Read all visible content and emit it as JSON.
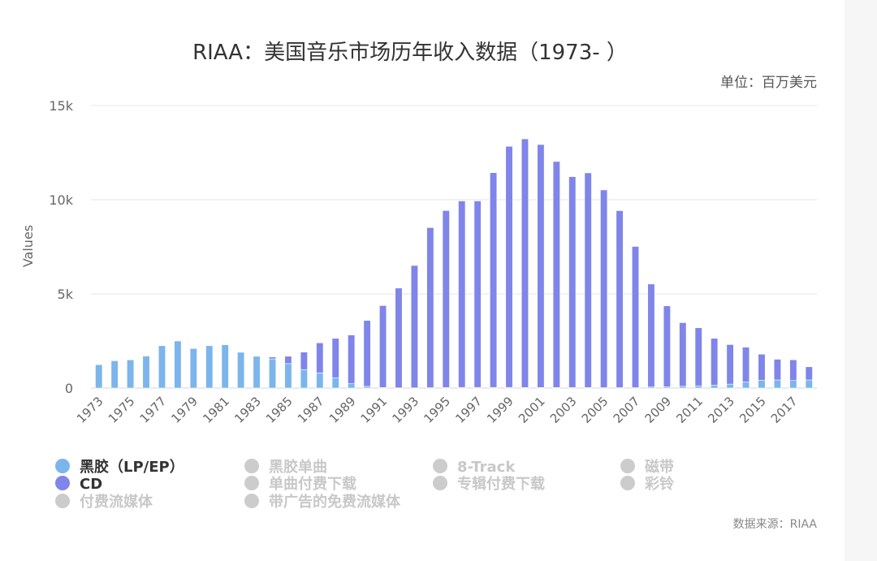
{
  "chart_data": {
    "type": "bar",
    "stacked": true,
    "title": "RIAA：美国音乐市场历年收入数据（1973- ）",
    "subtitle": "单位：百万美元",
    "ylabel": "Values",
    "ylim": [
      0,
      15000
    ],
    "yticks": [
      0,
      5000,
      10000,
      15000
    ],
    "ytick_labels": [
      "0",
      "5k",
      "10k",
      "15k"
    ],
    "grid": true,
    "categories": [
      1973,
      1974,
      1975,
      1976,
      1977,
      1978,
      1979,
      1980,
      1981,
      1982,
      1983,
      1984,
      1985,
      1986,
      1987,
      1988,
      1989,
      1990,
      1991,
      1992,
      1993,
      1994,
      1995,
      1996,
      1997,
      1998,
      1999,
      2000,
      2001,
      2002,
      2003,
      2004,
      2005,
      2006,
      2007,
      2008,
      2009,
      2010,
      2011,
      2012,
      2013,
      2014,
      2015,
      2016,
      2017,
      2018
    ],
    "xtick_labels": [
      "1973",
      "1975",
      "1977",
      "1979",
      "1981",
      "1983",
      "1985",
      "1987",
      "1989",
      "1991",
      "1993",
      "1995",
      "1997",
      "1999",
      "2001",
      "2003",
      "2005",
      "2007",
      "2009",
      "2011",
      "2013",
      "2015",
      "2017"
    ],
    "series": [
      {
        "name": "黑胶（LP/EP）",
        "color": "#7cb5ec",
        "values": [
          1240,
          1450,
          1500,
          1700,
          2250,
          2500,
          2100,
          2250,
          2300,
          1900,
          1700,
          1550,
          1300,
          980,
          800,
          550,
          230,
          90,
          30,
          10,
          10,
          20,
          25,
          35,
          35,
          35,
          35,
          30,
          30,
          30,
          25,
          25,
          20,
          20,
          20,
          55,
          65,
          95,
          120,
          160,
          210,
          320,
          420,
          430,
          400,
          430
        ]
      },
      {
        "name": "CD",
        "color": "#8085e9",
        "values": [
          0,
          0,
          0,
          0,
          0,
          0,
          0,
          0,
          0,
          0,
          10,
          100,
          390,
          930,
          1600,
          2090,
          2590,
          3500,
          4350,
          5300,
          6500,
          8500,
          9400,
          9900,
          9900,
          11400,
          12800,
          13200,
          12900,
          12000,
          11200,
          11400,
          10500,
          9400,
          7500,
          5470,
          4300,
          3380,
          3080,
          2480,
          2100,
          1850,
          1380,
          1100,
          1100,
          700
        ]
      }
    ],
    "legend": {
      "placement": "bottom-left",
      "items": [
        {
          "label": "黑胶（LP/EP）",
          "color": "#7cb5ec",
          "active": true
        },
        {
          "label": "黑胶单曲",
          "active": false
        },
        {
          "label": "8-Track",
          "active": false
        },
        {
          "label": "磁带",
          "active": false
        },
        {
          "label": "CD",
          "color": "#8085e9",
          "active": true
        },
        {
          "label": "单曲付费下载",
          "active": false
        },
        {
          "label": "专辑付费下载",
          "active": false
        },
        {
          "label": "彩铃",
          "active": false
        },
        {
          "label": "付费流媒体",
          "active": false
        },
        {
          "label": "带广告的免费流媒体",
          "active": false
        }
      ]
    },
    "credits": "数据来源：RIAA"
  }
}
